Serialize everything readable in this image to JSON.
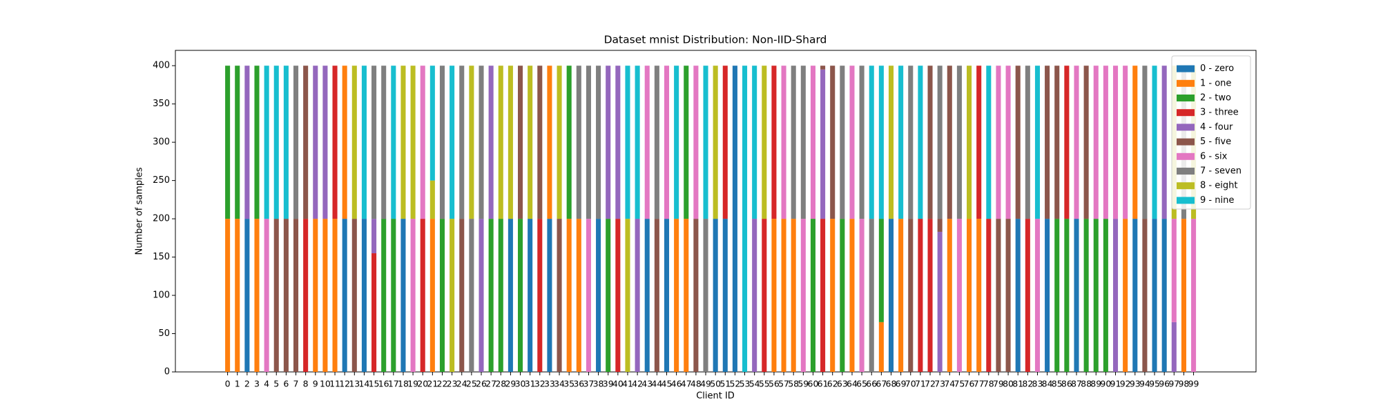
{
  "chart_data": {
    "type": "stacked_bar",
    "title": "Dataset mnist Distribution: Non-IID-Shard",
    "x_label": "Client ID",
    "y_label": "Number of samples",
    "categories": [
      "0",
      "1",
      "2",
      "3",
      "4",
      "5",
      "6",
      "7",
      "8",
      "9",
      "10",
      "11",
      "12",
      "13",
      "14",
      "15",
      "16",
      "17",
      "18",
      "19",
      "20",
      "21",
      "22",
      "23",
      "24",
      "25",
      "26",
      "27",
      "28",
      "29",
      "30",
      "31",
      "32",
      "33",
      "34",
      "35",
      "36",
      "37",
      "38",
      "39",
      "40",
      "41",
      "42",
      "43",
      "44",
      "45",
      "46",
      "47",
      "48",
      "49",
      "50",
      "51",
      "52",
      "53",
      "54",
      "55",
      "56",
      "57",
      "58",
      "59",
      "60",
      "61",
      "62",
      "63",
      "64",
      "65",
      "66",
      "67",
      "68",
      "69",
      "70",
      "71",
      "72",
      "73",
      "74",
      "75",
      "76",
      "77",
      "78",
      "79",
      "80",
      "81",
      "82",
      "83",
      "84",
      "85",
      "86",
      "87",
      "88",
      "89",
      "90",
      "91",
      "92",
      "93",
      "94",
      "95",
      "96",
      "97",
      "98",
      "99"
    ],
    "ylim": [
      0,
      420
    ],
    "yticks": [
      0,
      50,
      100,
      150,
      200,
      250,
      300,
      350,
      400
    ],
    "legend_position": "upper right",
    "series": [
      {
        "name": "0 - zero",
        "color": "#1f77b4",
        "values": [
          0,
          0,
          200,
          0,
          0,
          0,
          0,
          0,
          0,
          0,
          0,
          0,
          200,
          0,
          200,
          0,
          0,
          0,
          200,
          0,
          0,
          0,
          0,
          0,
          0,
          0,
          0,
          0,
          0,
          200,
          0,
          200,
          0,
          200,
          0,
          0,
          0,
          0,
          200,
          0,
          0,
          0,
          0,
          200,
          0,
          200,
          0,
          0,
          0,
          0,
          200,
          200,
          400,
          0,
          0,
          0,
          0,
          0,
          0,
          0,
          0,
          0,
          0,
          0,
          0,
          0,
          0,
          0,
          200,
          0,
          0,
          0,
          0,
          0,
          0,
          0,
          0,
          0,
          0,
          0,
          0,
          200,
          0,
          0,
          200,
          0,
          0,
          200,
          0,
          0,
          0,
          0,
          0,
          200,
          0,
          200,
          200,
          0,
          0,
          0
        ]
      },
      {
        "name": "1 - one",
        "color": "#ff7f0e",
        "values": [
          200,
          200,
          0,
          200,
          0,
          0,
          0,
          0,
          0,
          200,
          200,
          200,
          200,
          0,
          0,
          0,
          0,
          0,
          0,
          0,
          0,
          200,
          0,
          0,
          0,
          0,
          0,
          0,
          0,
          0,
          0,
          0,
          0,
          200,
          0,
          200,
          200,
          0,
          0,
          0,
          0,
          0,
          0,
          0,
          0,
          0,
          200,
          200,
          0,
          0,
          0,
          0,
          0,
          0,
          0,
          0,
          200,
          200,
          200,
          0,
          0,
          0,
          200,
          0,
          200,
          0,
          0,
          65,
          0,
          200,
          0,
          0,
          0,
          0,
          200,
          0,
          200,
          200,
          0,
          0,
          0,
          0,
          0,
          0,
          0,
          0,
          0,
          0,
          0,
          0,
          0,
          0,
          200,
          200,
          0,
          0,
          0,
          0,
          200,
          0
        ]
      },
      {
        "name": "2 - two",
        "color": "#2ca02c",
        "values": [
          200,
          200,
          0,
          200,
          0,
          0,
          0,
          0,
          0,
          0,
          0,
          0,
          0,
          0,
          0,
          0,
          200,
          200,
          0,
          0,
          0,
          0,
          200,
          0,
          0,
          0,
          0,
          200,
          200,
          0,
          200,
          0,
          0,
          0,
          0,
          200,
          0,
          0,
          0,
          200,
          0,
          0,
          0,
          0,
          0,
          0,
          0,
          200,
          0,
          0,
          0,
          0,
          0,
          0,
          0,
          0,
          0,
          0,
          0,
          0,
          200,
          0,
          0,
          200,
          0,
          0,
          0,
          135,
          0,
          0,
          0,
          0,
          0,
          0,
          0,
          0,
          0,
          0,
          0,
          0,
          0,
          0,
          0,
          0,
          0,
          200,
          200,
          0,
          200,
          200,
          200,
          0,
          0,
          0,
          0,
          0,
          0,
          0,
          0,
          0
        ]
      },
      {
        "name": "3 - three",
        "color": "#d62728",
        "values": [
          0,
          0,
          0,
          0,
          0,
          0,
          0,
          0,
          200,
          0,
          0,
          200,
          0,
          0,
          0,
          155,
          0,
          0,
          0,
          0,
          200,
          0,
          0,
          0,
          0,
          0,
          0,
          0,
          0,
          0,
          0,
          0,
          200,
          0,
          0,
          0,
          0,
          0,
          0,
          0,
          200,
          0,
          0,
          0,
          0,
          0,
          0,
          0,
          0,
          0,
          0,
          200,
          0,
          0,
          0,
          200,
          200,
          0,
          0,
          0,
          0,
          200,
          0,
          0,
          0,
          0,
          0,
          0,
          0,
          0,
          0,
          200,
          200,
          0,
          0,
          0,
          0,
          200,
          200,
          0,
          0,
          0,
          200,
          0,
          0,
          0,
          200,
          0,
          0,
          0,
          0,
          0,
          0,
          0,
          0,
          0,
          0,
          0,
          0,
          0
        ]
      },
      {
        "name": "4 - four",
        "color": "#9467bd",
        "values": [
          0,
          0,
          200,
          0,
          0,
          0,
          0,
          0,
          0,
          200,
          200,
          0,
          0,
          0,
          0,
          45,
          0,
          0,
          0,
          0,
          0,
          0,
          0,
          0,
          0,
          0,
          200,
          200,
          0,
          0,
          0,
          0,
          0,
          0,
          0,
          0,
          0,
          0,
          0,
          200,
          200,
          0,
          200,
          0,
          0,
          0,
          0,
          0,
          0,
          0,
          0,
          0,
          0,
          0,
          200,
          0,
          0,
          0,
          0,
          0,
          0,
          195,
          0,
          0,
          0,
          0,
          0,
          0,
          0,
          0,
          0,
          0,
          0,
          183,
          0,
          0,
          0,
          0,
          0,
          0,
          0,
          0,
          0,
          0,
          0,
          0,
          0,
          0,
          0,
          0,
          0,
          200,
          0,
          0,
          0,
          0,
          200,
          65,
          0,
          0
        ]
      },
      {
        "name": "5 - five",
        "color": "#8c564b",
        "values": [
          0,
          0,
          0,
          0,
          0,
          200,
          200,
          200,
          200,
          0,
          0,
          0,
          0,
          200,
          0,
          0,
          0,
          0,
          0,
          0,
          0,
          0,
          0,
          0,
          200,
          0,
          0,
          0,
          0,
          0,
          200,
          0,
          200,
          0,
          200,
          0,
          0,
          0,
          0,
          0,
          0,
          0,
          0,
          0,
          200,
          0,
          0,
          0,
          200,
          0,
          0,
          0,
          0,
          0,
          0,
          0,
          0,
          0,
          0,
          0,
          0,
          5,
          200,
          0,
          0,
          0,
          0,
          0,
          0,
          0,
          200,
          0,
          200,
          17,
          200,
          0,
          0,
          0,
          0,
          200,
          200,
          200,
          0,
          0,
          200,
          200,
          0,
          0,
          200,
          0,
          0,
          0,
          0,
          0,
          200,
          0,
          0,
          0,
          0,
          0
        ]
      },
      {
        "name": "6 - six",
        "color": "#e377c2",
        "values": [
          0,
          0,
          0,
          0,
          200,
          0,
          0,
          0,
          0,
          0,
          0,
          0,
          0,
          0,
          0,
          0,
          0,
          0,
          0,
          200,
          200,
          0,
          0,
          0,
          0,
          0,
          0,
          0,
          0,
          0,
          0,
          0,
          0,
          0,
          0,
          0,
          0,
          200,
          0,
          0,
          0,
          0,
          0,
          200,
          0,
          200,
          0,
          0,
          200,
          0,
          0,
          0,
          0,
          0,
          0,
          0,
          0,
          200,
          0,
          200,
          200,
          0,
          0,
          0,
          200,
          200,
          0,
          0,
          0,
          0,
          0,
          0,
          0,
          0,
          0,
          200,
          0,
          0,
          0,
          200,
          200,
          0,
          0,
          200,
          0,
          0,
          0,
          200,
          0,
          200,
          200,
          200,
          200,
          0,
          0,
          0,
          0,
          135,
          0,
          200
        ]
      },
      {
        "name": "7 - seven",
        "color": "#7f7f7f",
        "values": [
          0,
          0,
          0,
          0,
          0,
          0,
          0,
          200,
          0,
          0,
          0,
          0,
          0,
          0,
          0,
          200,
          200,
          0,
          0,
          0,
          0,
          0,
          200,
          0,
          200,
          200,
          200,
          0,
          0,
          0,
          0,
          0,
          0,
          0,
          0,
          0,
          200,
          200,
          200,
          0,
          0,
          0,
          0,
          0,
          200,
          0,
          0,
          0,
          0,
          200,
          0,
          0,
          0,
          0,
          0,
          0,
          0,
          0,
          200,
          200,
          0,
          0,
          0,
          200,
          0,
          200,
          200,
          0,
          0,
          0,
          200,
          0,
          0,
          200,
          0,
          200,
          0,
          0,
          0,
          0,
          0,
          0,
          200,
          0,
          0,
          0,
          0,
          0,
          0,
          0,
          0,
          0,
          0,
          0,
          200,
          0,
          0,
          0,
          200,
          0
        ]
      },
      {
        "name": "8 - eight",
        "color": "#bcbd22",
        "values": [
          0,
          0,
          0,
          0,
          0,
          0,
          0,
          0,
          0,
          0,
          0,
          0,
          0,
          200,
          0,
          0,
          0,
          0,
          200,
          200,
          0,
          50,
          0,
          200,
          0,
          200,
          0,
          0,
          200,
          200,
          0,
          200,
          0,
          0,
          200,
          0,
          0,
          0,
          0,
          0,
          0,
          200,
          0,
          0,
          0,
          0,
          0,
          0,
          0,
          0,
          200,
          0,
          0,
          0,
          0,
          200,
          0,
          0,
          0,
          0,
          0,
          0,
          0,
          0,
          0,
          0,
          0,
          0,
          200,
          0,
          0,
          0,
          0,
          0,
          0,
          0,
          200,
          0,
          0,
          0,
          0,
          0,
          0,
          0,
          0,
          0,
          0,
          0,
          0,
          0,
          0,
          0,
          0,
          0,
          0,
          0,
          0,
          200,
          0,
          200
        ]
      },
      {
        "name": "9 - nine",
        "color": "#17becf",
        "values": [
          0,
          0,
          0,
          0,
          200,
          200,
          200,
          0,
          0,
          0,
          0,
          0,
          0,
          0,
          200,
          0,
          0,
          200,
          0,
          0,
          0,
          150,
          0,
          200,
          0,
          0,
          0,
          0,
          0,
          0,
          0,
          0,
          0,
          0,
          0,
          0,
          0,
          0,
          0,
          0,
          0,
          200,
          200,
          0,
          0,
          0,
          200,
          0,
          0,
          200,
          0,
          0,
          0,
          400,
          200,
          0,
          0,
          0,
          0,
          0,
          0,
          0,
          0,
          0,
          0,
          0,
          200,
          200,
          0,
          200,
          0,
          200,
          0,
          0,
          0,
          0,
          0,
          0,
          200,
          0,
          0,
          0,
          0,
          200,
          0,
          0,
          0,
          0,
          0,
          0,
          0,
          0,
          0,
          0,
          0,
          200,
          0,
          0,
          0,
          0
        ]
      }
    ]
  }
}
